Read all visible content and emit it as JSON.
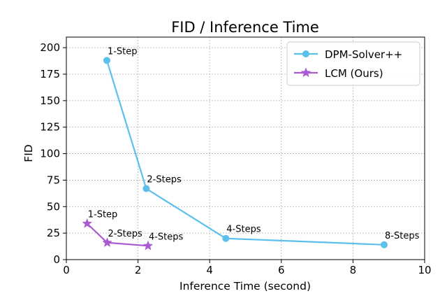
{
  "chart_data": {
    "type": "line",
    "title": "FID / Inference Time",
    "xlabel": "Inference Time (second)",
    "ylabel": "FID",
    "xlim": [
      0,
      10
    ],
    "ylim": [
      0,
      210
    ],
    "xticks": [
      0,
      2,
      4,
      6,
      8,
      10
    ],
    "yticks": [
      0,
      25,
      50,
      75,
      100,
      125,
      150,
      175,
      200
    ],
    "grid": true,
    "legend_position": "top-right",
    "series": [
      {
        "name": "DPM-Solver++",
        "color": "#5bc0eb",
        "marker": "circle",
        "points": [
          {
            "x": 1.13,
            "y": 188,
            "label": "1-Step"
          },
          {
            "x": 2.23,
            "y": 67,
            "label": "2-Steps"
          },
          {
            "x": 4.45,
            "y": 20,
            "label": "4-Steps"
          },
          {
            "x": 8.87,
            "y": 14,
            "label": "8-Steps"
          }
        ]
      },
      {
        "name": "LCM (Ours)",
        "color": "#a95bcf",
        "marker": "star",
        "points": [
          {
            "x": 0.58,
            "y": 34,
            "label": "1-Step"
          },
          {
            "x": 1.14,
            "y": 16,
            "label": "2-Steps"
          },
          {
            "x": 2.28,
            "y": 13,
            "label": "4-Steps"
          }
        ]
      }
    ]
  }
}
